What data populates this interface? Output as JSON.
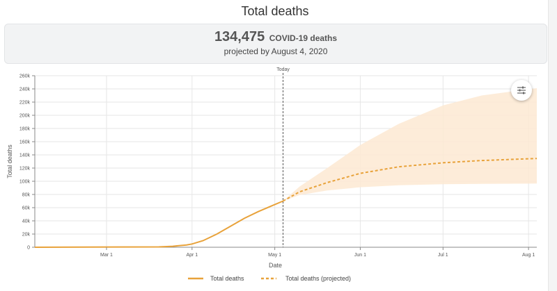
{
  "header": {
    "title": "Total deaths",
    "summary_number": "134,475",
    "summary_unit": "COVID-19 deaths",
    "summary_sub": "projected by August 4, 2020"
  },
  "colors": {
    "line": "#e8a23a",
    "band": "#fde9d2",
    "grid": "#e6e6e6",
    "axis": "#888888"
  },
  "icons": {
    "filter": "sliders-icon"
  },
  "chart_data": {
    "type": "line",
    "xlabel": "Date",
    "ylabel": "Total deaths",
    "today_label": "Today",
    "ylim": [
      0,
      260000
    ],
    "y_ticks": [
      0,
      20000,
      40000,
      60000,
      80000,
      100000,
      120000,
      140000,
      160000,
      180000,
      200000,
      220000,
      240000,
      260000
    ],
    "y_tick_labels": [
      "0",
      "20k",
      "40k",
      "60k",
      "80k",
      "100k",
      "120k",
      "140k",
      "160k",
      "180k",
      "200k",
      "220k",
      "240k",
      "260k"
    ],
    "x_range": [
      "2020-02-04",
      "2020-08-04"
    ],
    "x_ticks": [
      "2020-03-01",
      "2020-04-01",
      "2020-05-01",
      "2020-06-01",
      "2020-07-01",
      "2020-08-01"
    ],
    "x_tick_labels": [
      "Mar 1",
      "Apr 1",
      "May 1",
      "Jun 1",
      "Jul 1",
      "Aug 1"
    ],
    "today": "2020-05-04",
    "series": [
      {
        "name": "Total deaths",
        "style": "solid",
        "x": [
          "2020-02-04",
          "2020-03-20",
          "2020-03-25",
          "2020-03-30",
          "2020-04-01",
          "2020-04-05",
          "2020-04-10",
          "2020-04-15",
          "2020-04-20",
          "2020-04-25",
          "2020-04-30",
          "2020-05-04"
        ],
        "y": [
          0,
          500,
          1500,
          3500,
          5000,
          10000,
          20000,
          32000,
          44000,
          54000,
          63000,
          70000
        ]
      },
      {
        "name": "Total deaths (projected)",
        "style": "dashed",
        "x": [
          "2020-05-04",
          "2020-05-10",
          "2020-05-20",
          "2020-06-01",
          "2020-06-15",
          "2020-07-01",
          "2020-07-15",
          "2020-08-04"
        ],
        "y": [
          70000,
          84000,
          98000,
          112000,
          122000,
          128000,
          131500,
          134500
        ]
      }
    ],
    "uncertainty_band": {
      "x": [
        "2020-05-04",
        "2020-05-10",
        "2020-05-20",
        "2020-06-01",
        "2020-06-15",
        "2020-07-01",
        "2020-07-15",
        "2020-08-04"
      ],
      "lower": [
        70000,
        79000,
        86000,
        91000,
        94000,
        95500,
        96000,
        96500
      ],
      "upper": [
        70000,
        92000,
        120000,
        155000,
        187000,
        215000,
        230000,
        241000
      ]
    },
    "legend_position": "bottom",
    "grid": true
  }
}
